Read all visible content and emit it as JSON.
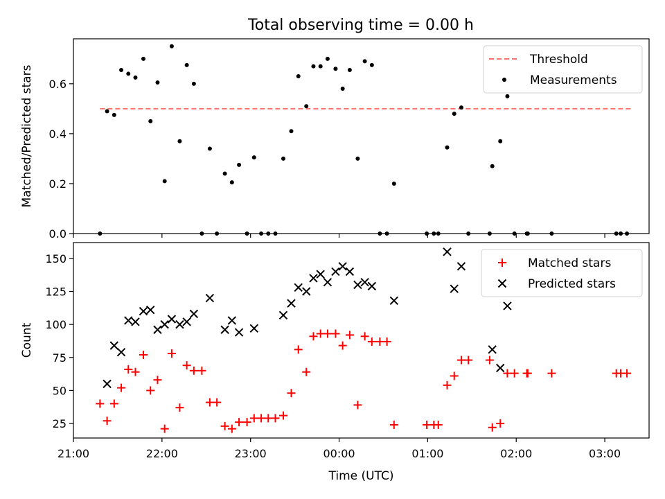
{
  "figure": {
    "title": "Total observing time = 0.00 h"
  },
  "chart_data": [
    {
      "type": "scatter",
      "title": "Total observing time = 0.00 h",
      "xlabel": "",
      "ylabel": "Matched/Predicted stars",
      "x_unit": "hours since 21:00 UTC on the shared time axis",
      "xlim": [
        0,
        6.5
      ],
      "ylim": [
        0,
        0.78
      ],
      "yticks": [
        0.0,
        0.2,
        0.4,
        0.6
      ],
      "ytick_labels": [
        "0.0",
        "0.2",
        "0.4",
        "0.6"
      ],
      "legend": {
        "placement": "top-right",
        "entries": [
          "Threshold",
          "Measurements"
        ]
      },
      "threshold": {
        "name": "Threshold",
        "value": 0.5,
        "x_range": [
          0.3,
          6.3
        ],
        "color": "#ff7070",
        "style": "dashed"
      },
      "series": [
        {
          "name": "Measurements",
          "color": "#000000",
          "marker": "dot",
          "points": [
            [
              0.3,
              0.0
            ],
            [
              0.38,
              0.49
            ],
            [
              0.46,
              0.475
            ],
            [
              0.54,
              0.655
            ],
            [
              0.62,
              0.64
            ],
            [
              0.7,
              0.625
            ],
            [
              0.79,
              0.7
            ],
            [
              0.87,
              0.45
            ],
            [
              0.95,
              0.605
            ],
            [
              1.03,
              0.21
            ],
            [
              1.11,
              0.75
            ],
            [
              1.2,
              0.37
            ],
            [
              1.28,
              0.675
            ],
            [
              1.36,
              0.6
            ],
            [
              1.45,
              0.0
            ],
            [
              1.54,
              0.34
            ],
            [
              1.62,
              0.0
            ],
            [
              1.71,
              0.24
            ],
            [
              1.79,
              0.205
            ],
            [
              1.87,
              0.275
            ],
            [
              1.96,
              0.0
            ],
            [
              2.04,
              0.305
            ],
            [
              2.12,
              0.0
            ],
            [
              2.2,
              0.0
            ],
            [
              2.28,
              0.0
            ],
            [
              2.37,
              0.3
            ],
            [
              2.46,
              0.41
            ],
            [
              2.54,
              0.63
            ],
            [
              2.63,
              0.51
            ],
            [
              2.71,
              0.67
            ],
            [
              2.79,
              0.67
            ],
            [
              2.87,
              0.7
            ],
            [
              2.96,
              0.66
            ],
            [
              3.04,
              0.58
            ],
            [
              3.12,
              0.655
            ],
            [
              3.21,
              0.3
            ],
            [
              3.29,
              0.69
            ],
            [
              3.37,
              0.675
            ],
            [
              3.46,
              0.0
            ],
            [
              3.54,
              0.0
            ],
            [
              3.62,
              0.2
            ],
            [
              3.99,
              0.0
            ],
            [
              4.07,
              0.0
            ],
            [
              4.12,
              0.0
            ],
            [
              4.22,
              0.345
            ],
            [
              4.3,
              0.48
            ],
            [
              4.38,
              0.505
            ],
            [
              4.46,
              0.0
            ],
            [
              4.7,
              0.0
            ],
            [
              4.73,
              0.27
            ],
            [
              4.82,
              0.37
            ],
            [
              4.9,
              0.55
            ],
            [
              4.98,
              0.0
            ],
            [
              5.12,
              0.0
            ],
            [
              5.13,
              0.0
            ],
            [
              5.4,
              0.0
            ],
            [
              6.13,
              0.0
            ],
            [
              6.18,
              0.0
            ],
            [
              6.25,
              0.0
            ]
          ]
        }
      ]
    },
    {
      "type": "scatter",
      "title": "",
      "xlabel": "Time (UTC)",
      "ylabel": "Count",
      "x_unit": "hours since 21:00 UTC",
      "xlim": [
        0,
        6.5
      ],
      "ylim": [
        14,
        162
      ],
      "xticks": [
        0,
        1,
        2,
        3,
        4,
        5,
        6
      ],
      "xtick_labels": [
        "21:00",
        "22:00",
        "23:00",
        "00:00",
        "01:00",
        "02:00",
        "03:00"
      ],
      "yticks": [
        25,
        50,
        75,
        100,
        125,
        150
      ],
      "ytick_labels": [
        "25",
        "50",
        "75",
        "100",
        "125",
        "150"
      ],
      "legend": {
        "placement": "top-right",
        "entries": [
          "Matched stars",
          "Predicted stars"
        ]
      },
      "series": [
        {
          "name": "Matched stars",
          "color": "#ff0000",
          "marker": "plus",
          "points": [
            [
              0.3,
              40
            ],
            [
              0.38,
              27
            ],
            [
              0.46,
              40
            ],
            [
              0.54,
              52
            ],
            [
              0.62,
              66
            ],
            [
              0.7,
              64
            ],
            [
              0.79,
              77
            ],
            [
              0.87,
              50
            ],
            [
              0.95,
              58
            ],
            [
              1.03,
              21
            ],
            [
              1.11,
              78
            ],
            [
              1.2,
              37
            ],
            [
              1.28,
              69
            ],
            [
              1.36,
              65
            ],
            [
              1.45,
              65
            ],
            [
              1.54,
              41
            ],
            [
              1.62,
              41
            ],
            [
              1.71,
              23
            ],
            [
              1.79,
              21
            ],
            [
              1.87,
              26
            ],
            [
              1.96,
              26
            ],
            [
              2.04,
              29
            ],
            [
              2.12,
              29
            ],
            [
              2.2,
              29
            ],
            [
              2.28,
              29
            ],
            [
              2.37,
              31
            ],
            [
              2.46,
              48
            ],
            [
              2.54,
              81
            ],
            [
              2.63,
              64
            ],
            [
              2.71,
              91
            ],
            [
              2.79,
              93
            ],
            [
              2.87,
              93
            ],
            [
              2.96,
              93
            ],
            [
              3.04,
              84
            ],
            [
              3.12,
              92
            ],
            [
              3.21,
              39
            ],
            [
              3.29,
              91
            ],
            [
              3.37,
              87
            ],
            [
              3.46,
              87
            ],
            [
              3.54,
              87
            ],
            [
              3.62,
              24
            ],
            [
              3.99,
              24
            ],
            [
              4.07,
              24
            ],
            [
              4.12,
              24
            ],
            [
              4.22,
              54
            ],
            [
              4.3,
              61
            ],
            [
              4.38,
              73
            ],
            [
              4.46,
              73
            ],
            [
              4.7,
              73
            ],
            [
              4.73,
              22
            ],
            [
              4.82,
              25
            ],
            [
              4.9,
              63
            ],
            [
              4.98,
              63
            ],
            [
              5.12,
              63
            ],
            [
              5.13,
              63
            ],
            [
              5.4,
              63
            ],
            [
              6.13,
              63
            ],
            [
              6.18,
              63
            ],
            [
              6.25,
              63
            ]
          ]
        },
        {
          "name": "Predicted stars",
          "color": "#000000",
          "marker": "x",
          "points": [
            [
              0.38,
              55
            ],
            [
              0.46,
              84
            ],
            [
              0.54,
              79
            ],
            [
              0.62,
              103
            ],
            [
              0.7,
              102
            ],
            [
              0.79,
              110
            ],
            [
              0.87,
              111
            ],
            [
              0.95,
              96
            ],
            [
              1.03,
              100
            ],
            [
              1.11,
              104
            ],
            [
              1.2,
              100
            ],
            [
              1.28,
              102
            ],
            [
              1.36,
              108
            ],
            [
              1.54,
              120
            ],
            [
              1.71,
              96
            ],
            [
              1.79,
              103
            ],
            [
              1.87,
              94
            ],
            [
              2.04,
              97
            ],
            [
              2.37,
              107
            ],
            [
              2.46,
              116
            ],
            [
              2.54,
              128
            ],
            [
              2.63,
              125
            ],
            [
              2.71,
              135
            ],
            [
              2.79,
              138
            ],
            [
              2.87,
              132
            ],
            [
              2.96,
              140
            ],
            [
              3.04,
              144
            ],
            [
              3.12,
              140
            ],
            [
              3.21,
              130
            ],
            [
              3.29,
              132
            ],
            [
              3.37,
              129
            ],
            [
              3.62,
              118
            ],
            [
              4.22,
              155
            ],
            [
              4.3,
              127
            ],
            [
              4.38,
              144
            ],
            [
              4.73,
              81
            ],
            [
              4.82,
              67
            ],
            [
              4.9,
              114
            ]
          ]
        }
      ]
    }
  ]
}
